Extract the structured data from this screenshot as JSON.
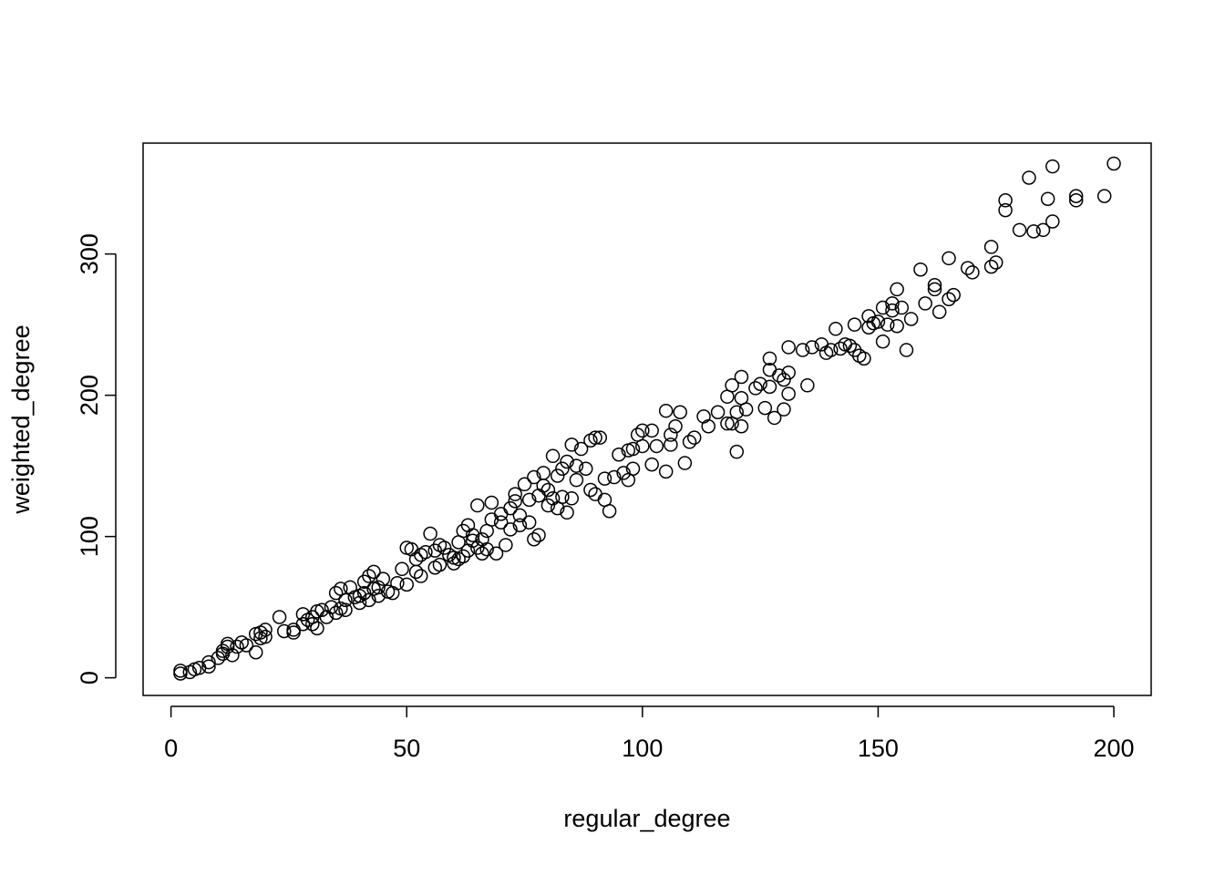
{
  "chart_data": {
    "type": "scatter",
    "xlabel": "regular_degree",
    "ylabel": "weighted_degree",
    "xlim": [
      -5.92,
      207.92
    ],
    "ylim": [
      -12.5,
      378.5
    ],
    "xticks": [
      0,
      50,
      100,
      150,
      200
    ],
    "yticks": [
      0,
      100,
      200,
      300
    ],
    "color": "#000000",
    "x": [
      2,
      2,
      4,
      5,
      6,
      8,
      8,
      10,
      11,
      11,
      12,
      12,
      13,
      14,
      15,
      16,
      18,
      18,
      19,
      19,
      20,
      20,
      23,
      24,
      26,
      26,
      28,
      28,
      29,
      30,
      30,
      31,
      31,
      32,
      33,
      34,
      35,
      35,
      36,
      36,
      37,
      37,
      38,
      39,
      40,
      40,
      41,
      41,
      42,
      42,
      43,
      43,
      44,
      44,
      45,
      46,
      47,
      48,
      49,
      50,
      50,
      51,
      52,
      52,
      53,
      53,
      54,
      55,
      56,
      56,
      57,
      57,
      58,
      59,
      60,
      60,
      61,
      61,
      62,
      62,
      63,
      63,
      64,
      64,
      65,
      65,
      66,
      66,
      67,
      67,
      68,
      68,
      69,
      70,
      70,
      71,
      72,
      72,
      73,
      73,
      74,
      74,
      75,
      76,
      76,
      77,
      77,
      78,
      78,
      79,
      79,
      80,
      80,
      81,
      81,
      82,
      82,
      83,
      83,
      84,
      84,
      85,
      85,
      86,
      86,
      87,
      88,
      89,
      89,
      90,
      90,
      91,
      92,
      92,
      93,
      94,
      95,
      96,
      97,
      97,
      98,
      98,
      99,
      100,
      100,
      102,
      102,
      103,
      105,
      105,
      106,
      106,
      107,
      108,
      109,
      110,
      111,
      113,
      114,
      116,
      118,
      118,
      119,
      119,
      120,
      120,
      121,
      121,
      121,
      122,
      124,
      125,
      126,
      127,
      127,
      127,
      128,
      129,
      130,
      130,
      131,
      131,
      131,
      134,
      135,
      136,
      138,
      139,
      140,
      141,
      142,
      143,
      144,
      145,
      145,
      146,
      147,
      148,
      148,
      149,
      150,
      151,
      151,
      152,
      153,
      153,
      154,
      154,
      155,
      156,
      157,
      159,
      160,
      162,
      162,
      163,
      165,
      165,
      166,
      169,
      170,
      174,
      174,
      175,
      177,
      177,
      180,
      182,
      183,
      185,
      186,
      187,
      187,
      192,
      192,
      198,
      200
    ],
    "values": [
      3,
      5,
      4,
      6,
      7,
      8,
      11,
      14,
      17,
      19,
      22,
      24,
      16,
      22,
      25,
      23,
      18,
      31,
      28,
      32,
      29,
      34,
      43,
      33,
      32,
      34,
      38,
      45,
      41,
      38,
      43,
      35,
      47,
      48,
      43,
      50,
      60,
      46,
      63,
      49,
      55,
      48,
      64,
      57,
      58,
      53,
      60,
      68,
      55,
      72,
      75,
      63,
      64,
      58,
      70,
      61,
      60,
      67,
      77,
      92,
      66,
      91,
      84,
      75,
      72,
      87,
      89,
      102,
      78,
      90,
      94,
      80,
      92,
      87,
      85,
      81,
      84,
      96,
      104,
      86,
      90,
      108,
      101,
      97,
      122,
      92,
      98,
      88,
      91,
      104,
      124,
      112,
      88,
      110,
      116,
      94,
      120,
      105,
      130,
      125,
      115,
      108,
      137,
      126,
      110,
      98,
      142,
      101,
      129,
      145,
      136,
      133,
      122,
      157,
      127,
      143,
      120,
      148,
      128,
      117,
      153,
      165,
      127,
      150,
      140,
      162,
      148,
      133,
      168,
      170,
      130,
      170,
      126,
      141,
      118,
      142,
      158,
      145,
      161,
      140,
      148,
      162,
      172,
      175,
      164,
      151,
      175,
      164,
      189,
      146,
      165,
      172,
      178,
      188,
      152,
      167,
      170,
      185,
      178,
      188,
      180,
      199,
      207,
      180,
      160,
      188,
      213,
      178,
      198,
      190,
      205,
      208,
      191,
      226,
      218,
      206,
      184,
      214,
      190,
      211,
      234,
      201,
      216,
      232,
      207,
      234,
      236,
      230,
      232,
      247,
      233,
      236,
      235,
      250,
      232,
      228,
      226,
      256,
      248,
      251,
      252,
      238,
      262,
      250,
      265,
      260,
      275,
      249,
      262,
      232,
      254,
      289,
      265,
      278,
      275,
      259,
      297,
      268,
      271,
      290,
      287,
      305,
      291,
      294,
      338,
      331,
      317,
      354,
      316,
      317,
      339,
      362,
      323,
      341,
      338,
      341,
      364
    ]
  }
}
